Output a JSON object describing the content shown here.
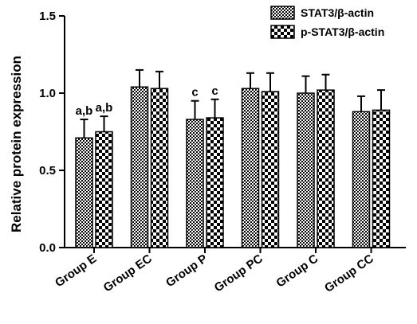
{
  "chart_data": {
    "type": "bar",
    "title": "",
    "xlabel": "",
    "ylabel": "Relative protein expression",
    "ylim": [
      0,
      1.5
    ],
    "yticks": [
      "0.0",
      "0.5",
      "1.0",
      "1.5"
    ],
    "categories": [
      "Group E",
      "Group EC",
      "Group P",
      "Group PC",
      "Group C",
      "Group CC"
    ],
    "series": [
      {
        "name": "STAT3/β-actin",
        "pattern": "crosshatch",
        "values": [
          0.71,
          1.04,
          0.83,
          1.03,
          1.0,
          0.88
        ],
        "errors": [
          0.12,
          0.11,
          0.12,
          0.1,
          0.11,
          0.1
        ]
      },
      {
        "name": "p-STAT3/β-actin",
        "pattern": "checkerboard",
        "values": [
          0.75,
          1.03,
          0.84,
          1.01,
          1.02,
          0.89
        ],
        "errors": [
          0.1,
          0.11,
          0.12,
          0.12,
          0.1,
          0.13
        ]
      }
    ],
    "annotations": [
      {
        "category": "Group E",
        "series": 0,
        "text": "a,b"
      },
      {
        "category": "Group E",
        "series": 1,
        "text": "a,b"
      },
      {
        "category": "Group P",
        "series": 0,
        "text": "c"
      },
      {
        "category": "Group P",
        "series": 1,
        "text": "c"
      }
    ],
    "legend_position": "top-right",
    "grid": false
  }
}
